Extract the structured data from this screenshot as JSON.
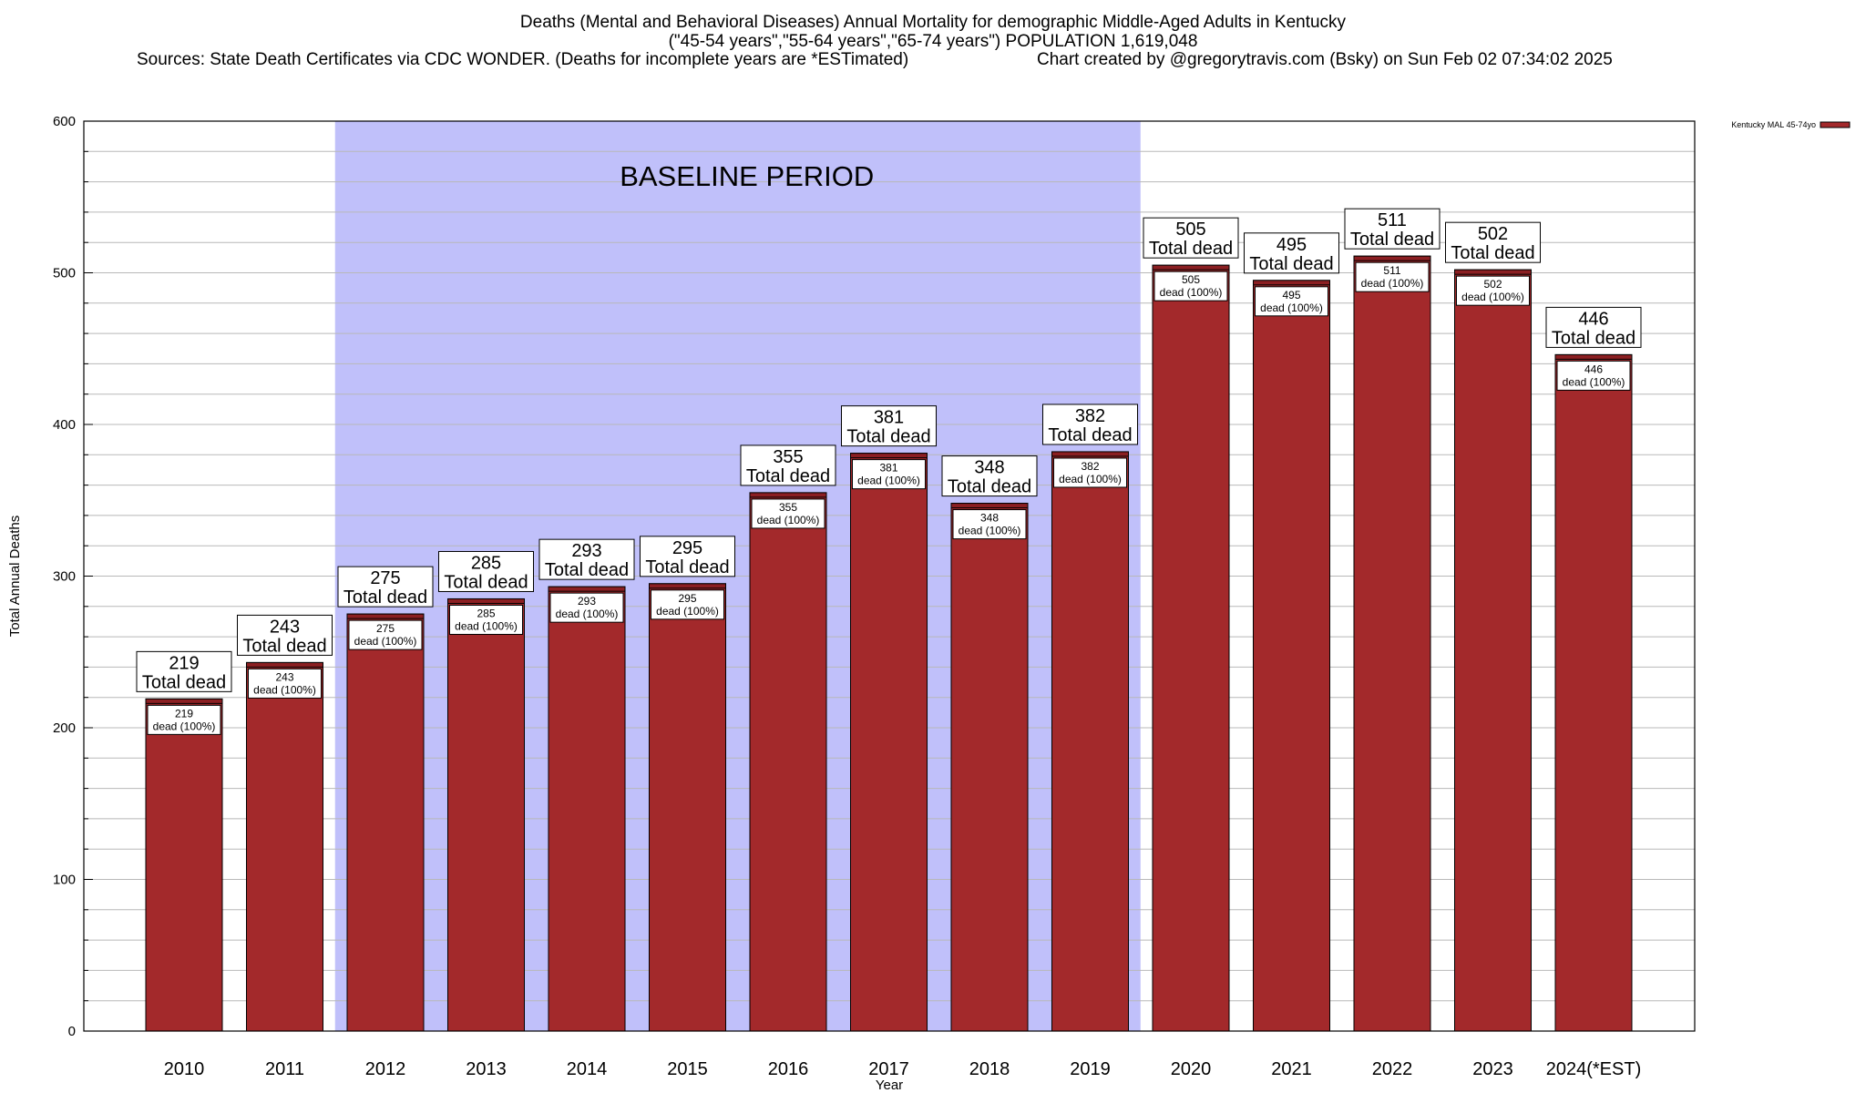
{
  "title": {
    "line1": "Deaths (Mental and Behavioral Diseases) Annual Mortality for demographic Middle-Aged Adults in Kentucky",
    "line2": "(\"45-54 years\",\"55-64 years\",\"65-74 years\") POPULATION 1,619,048",
    "sources": "Sources: State Death Certificates via CDC WONDER. (Deaths for incomplete years are *ESTimated)",
    "credit": "Chart created by @gregorytravis.com (Bsky) on Sun Feb 02 07:34:02 2025"
  },
  "colors": {
    "bar": "#a3292b",
    "bar_top": "#8b1f22",
    "baseline_shade": "#c0c0fa",
    "grid": "#b8b8b8"
  },
  "chart_data": {
    "type": "bar",
    "categories": [
      "2010",
      "2011",
      "2012",
      "2013",
      "2014",
      "2015",
      "2016",
      "2017",
      "2018",
      "2019",
      "2020",
      "2021",
      "2022",
      "2023",
      "2024(*EST)"
    ],
    "series": [
      {
        "name": "Kentucky MAL 45-74yo",
        "values": [
          219,
          243,
          275,
          285,
          293,
          295,
          355,
          381,
          348,
          382,
          505,
          495,
          511,
          502,
          446
        ]
      }
    ],
    "top_label_suffix": "Total dead",
    "inner_label_suffix": "dead (100%)",
    "xlabel": "Year",
    "ylabel": "Total Annual Deaths",
    "ylim": [
      0,
      600
    ],
    "yticks": [
      0,
      100,
      200,
      300,
      400,
      500,
      600
    ],
    "grid": true,
    "legend_position": "top-right",
    "baseline": {
      "label": "BASELINE PERIOD",
      "from": "2012",
      "to": "2019"
    }
  }
}
